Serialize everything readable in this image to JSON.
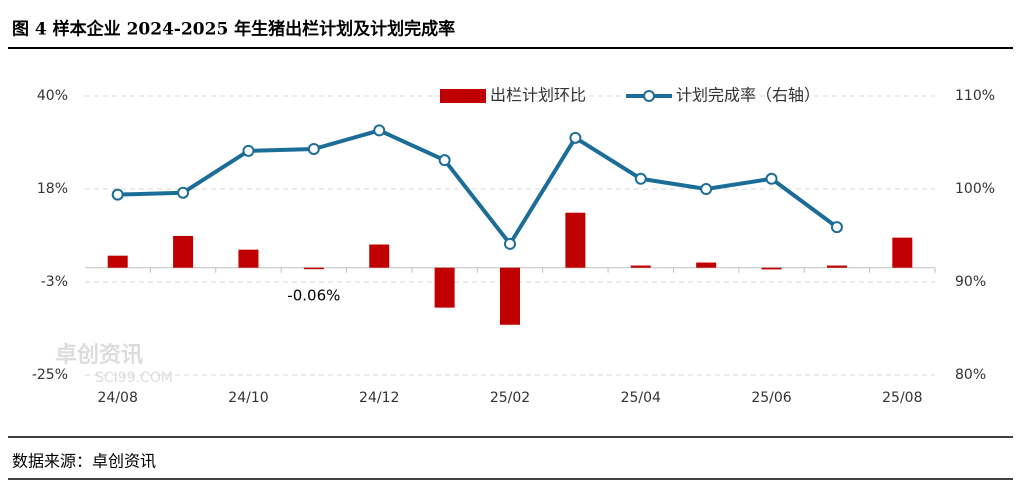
{
  "title": "图 4 样本企业 2024-2025 年生猪出栏计划及计划完成率",
  "source": "数据来源：卓创资讯",
  "watermark": [
    "卓创资讯",
    "SCI99.COM"
  ],
  "chart_data": {
    "type": "bar-line",
    "categories": [
      "24/08",
      null,
      "24/10",
      null,
      "24/12",
      null,
      "25/02",
      null,
      "25/04",
      null,
      "25/06",
      null,
      "25/08"
    ],
    "series": [
      {
        "name": "出栏计划环比",
        "type": "bar",
        "color": "#c00000",
        "axis": "y",
        "values": [
          2.8,
          7.4,
          4.2,
          -0.06,
          5.4,
          -9.3,
          -13.3,
          12.8,
          0.5,
          1.2,
          -0.4,
          0.5,
          7.0
        ],
        "value_labels": [
          null,
          null,
          null,
          "-0.06%",
          null,
          null,
          null,
          null,
          null,
          null,
          null,
          null,
          null
        ]
      },
      {
        "name": "计划完成率（右轴）",
        "type": "line",
        "color": "#1b6d98",
        "axis": "y2",
        "values": [
          99.4,
          99.6,
          104.1,
          104.3,
          106.3,
          103.1,
          94.1,
          105.5,
          101.1,
          100.0,
          101.1,
          95.9,
          null
        ]
      }
    ],
    "ylim": [
      -25,
      40
    ],
    "yticks": [
      {
        "value": 40,
        "label": "40%"
      },
      {
        "value": 18.333,
        "label": "18%"
      },
      {
        "value": -3.333,
        "label": "-3%"
      },
      {
        "value": -25,
        "label": "-25%"
      }
    ],
    "y2lim": [
      80,
      110
    ],
    "y2ticks": [
      {
        "value": 110,
        "label": "110%"
      },
      {
        "value": 100,
        "label": "100%"
      },
      {
        "value": 90,
        "label": "90%"
      },
      {
        "value": 80,
        "label": "80%"
      }
    ],
    "grid": true,
    "legend": "top"
  }
}
